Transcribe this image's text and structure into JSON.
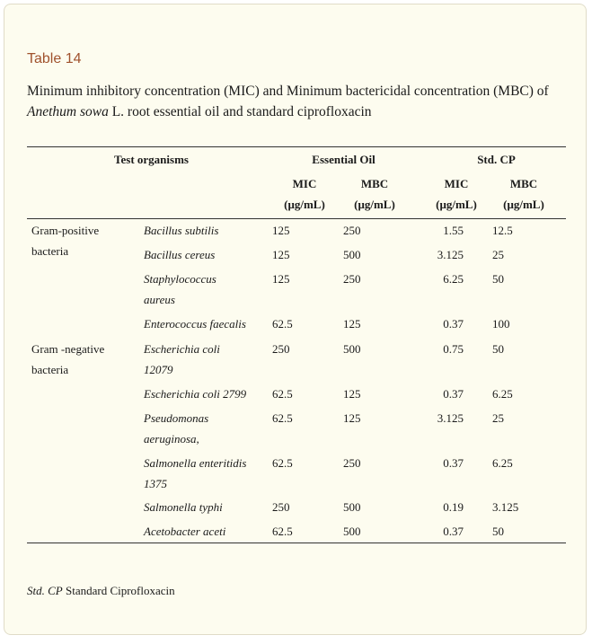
{
  "table_label": "Table 14",
  "caption": {
    "prefix": "Minimum inhibitory concentration (MIC) and Minimum bactericidal concentration (MBC) of ",
    "species": "Anethum sowa",
    "suffix": " L. root essential oil and standard ciprofloxacin"
  },
  "headers": {
    "test_organisms": "Test organisms",
    "essential_oil": "Essential Oil",
    "std_cp": "Std. CP",
    "mic": "MIC",
    "mbc": "MBC",
    "unit": "(μg/mL)"
  },
  "groups": [
    {
      "line1": "Gram-positive",
      "line2": "bacteria"
    },
    {
      "line1": "Gram -negative",
      "line2": "bacteria"
    }
  ],
  "rows": [
    {
      "organism": [
        "Bacillus subtilis"
      ],
      "eo_mic": "125",
      "eo_mbc": "250",
      "cp_mic": "1.55",
      "cp_mbc": "12.5"
    },
    {
      "organism": [
        "Bacillus cereus"
      ],
      "eo_mic": "125",
      "eo_mbc": "500",
      "cp_mic": "3.125",
      "cp_mbc": "25"
    },
    {
      "organism": [
        "Staphylococcus",
        "aureus"
      ],
      "eo_mic": "125",
      "eo_mbc": "250",
      "cp_mic": "6.25",
      "cp_mbc": "50"
    },
    {
      "organism": [
        "Enterococcus faecalis"
      ],
      "eo_mic": "62.5",
      "eo_mbc": "125",
      "cp_mic": "0.37",
      "cp_mbc": "100"
    },
    {
      "organism": [
        "Escherichia coli",
        "12079"
      ],
      "eo_mic": "250",
      "eo_mbc": "500",
      "cp_mic": "0.75",
      "cp_mbc": "50"
    },
    {
      "organism": [
        "Escherichia coli 2799"
      ],
      "eo_mic": "62.5",
      "eo_mbc": "125",
      "cp_mic": "0.37",
      "cp_mbc": "6.25"
    },
    {
      "organism": [
        "Pseudomonas",
        "aeruginosa,"
      ],
      "eo_mic": "62.5",
      "eo_mbc": "125",
      "cp_mic": "3.125",
      "cp_mbc": "25"
    },
    {
      "organism": [
        "Salmonella enteritidis",
        "1375"
      ],
      "eo_mic": "62.5",
      "eo_mbc": "250",
      "cp_mic": "0.37",
      "cp_mbc": "6.25"
    },
    {
      "organism": [
        "Salmonella typhi"
      ],
      "eo_mic": "250",
      "eo_mbc": "500",
      "cp_mic": "0.19",
      "cp_mbc": "3.125"
    },
    {
      "organism": [
        "Acetobacter aceti"
      ],
      "eo_mic": "62.5",
      "eo_mbc": "500",
      "cp_mic": "0.37",
      "cp_mbc": "50"
    }
  ],
  "footnote": {
    "abbr": "Std. CP",
    "text": " Standard Ciprofloxacin"
  }
}
